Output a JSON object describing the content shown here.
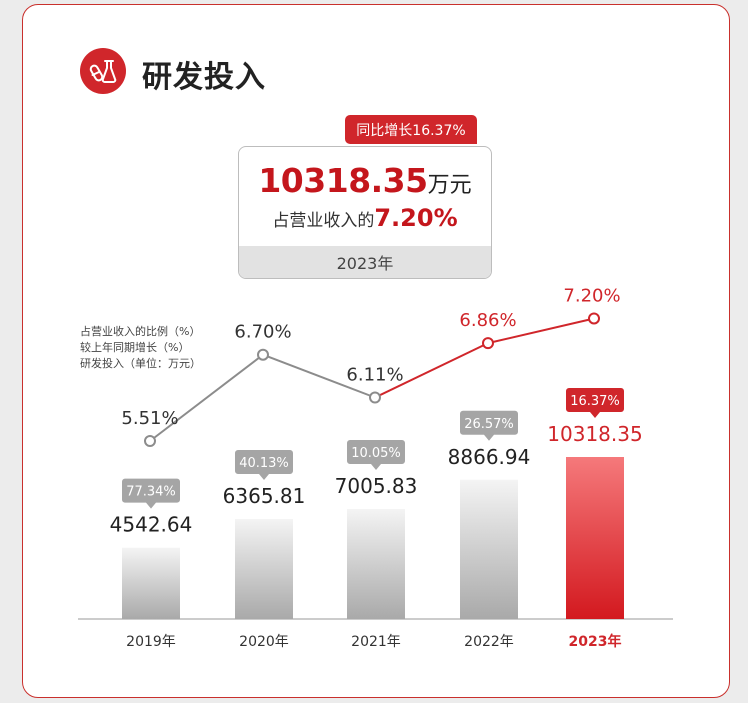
{
  "header": {
    "title": "研发投入",
    "icon": "lab-flask-icon"
  },
  "kpi": {
    "tag": "同比增长16.37%",
    "value": "10318.35",
    "unit": "万元",
    "sub_text": "占营业收入的",
    "ratio": "7.20%",
    "year": "2023年"
  },
  "legend": [
    "占营业收入的比例（%）",
    "较上年同期增长（%）",
    "研发投入（单位：万元）"
  ],
  "colors": {
    "accent": "#d0262b",
    "gray_bar": "#bdbdbd",
    "line": "#8c8c8c"
  },
  "chart_data": {
    "type": "bar",
    "categories": [
      "2019年",
      "2020年",
      "2021年",
      "2022年",
      "2023年"
    ],
    "series": [
      {
        "name": "研发投入（单位：万元）",
        "values": [
          4542.64,
          6365.81,
          7005.83,
          8866.94,
          10318.35
        ],
        "labels": [
          "4542.64",
          "6365.81",
          "7005.83",
          "8866.94",
          "10318.35"
        ]
      },
      {
        "name": "较上年同期增长（%）",
        "values": [
          77.34,
          40.13,
          10.05,
          26.57,
          16.37
        ],
        "labels": [
          "77.34%",
          "40.13%",
          "10.05%",
          "26.57%",
          "16.37%"
        ]
      },
      {
        "name": "占营业收入的比例（%）",
        "type": "line",
        "values": [
          5.51,
          6.7,
          6.11,
          6.86,
          7.2
        ],
        "labels": [
          "5.51%",
          "6.70%",
          "6.11%",
          "6.86%",
          "7.20%"
        ]
      }
    ],
    "highlight_index": 4,
    "grid": false
  }
}
